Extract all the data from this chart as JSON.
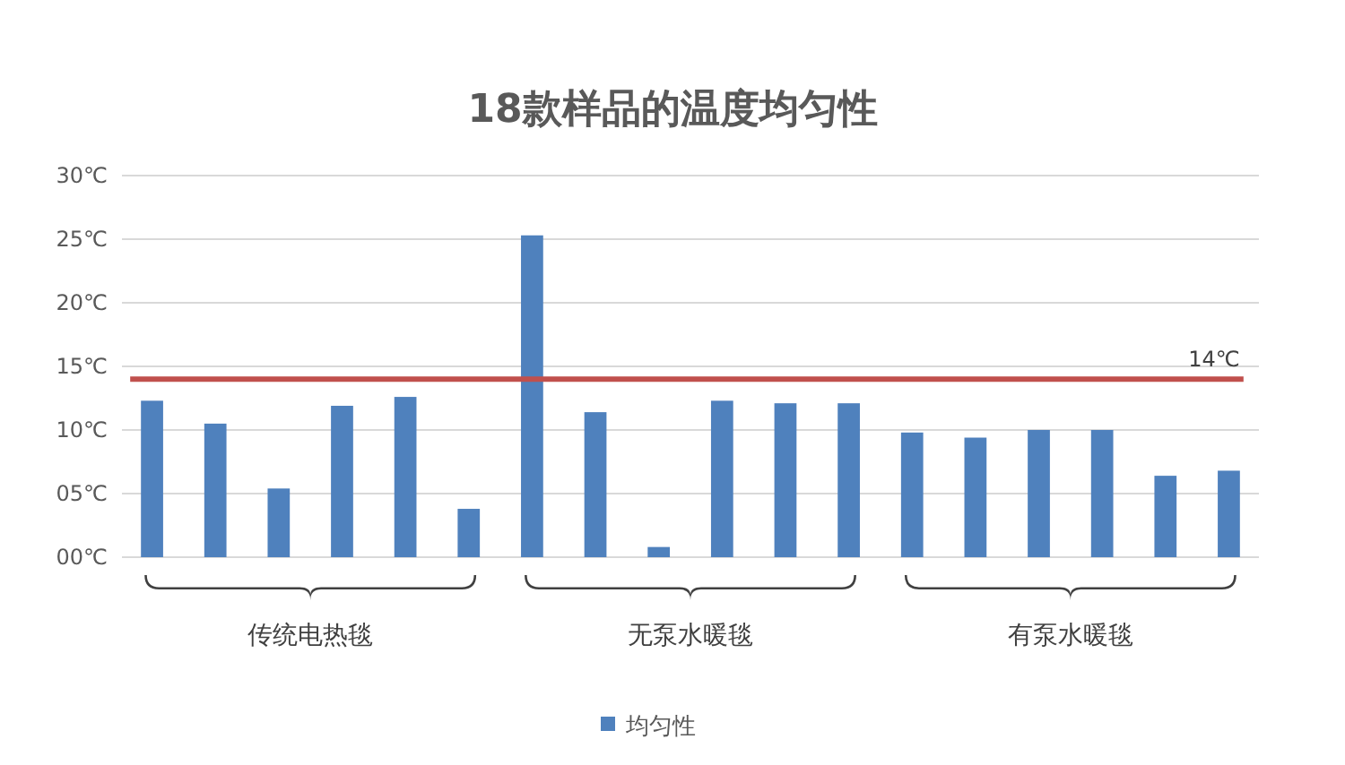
{
  "chart_data": {
    "type": "bar",
    "title": "18款样品的温度均匀性",
    "categories": [
      null,
      null,
      null,
      null,
      null,
      null,
      null,
      null,
      null,
      null,
      null,
      null,
      null,
      null,
      null,
      null,
      null,
      null
    ],
    "series": [
      {
        "name": "均匀性",
        "color": "#4f81bd",
        "values": [
          12.3,
          10.5,
          5.4,
          11.9,
          12.6,
          3.8,
          25.3,
          11.4,
          0.8,
          12.3,
          12.1,
          12.1,
          9.8,
          9.4,
          10.0,
          10.0,
          6.4,
          6.8
        ]
      }
    ],
    "ylim": [
      0,
      30
    ],
    "yticks": [
      {
        "value": 0,
        "label": "00℃"
      },
      {
        "value": 5,
        "label": "05℃"
      },
      {
        "value": 10,
        "label": "10℃"
      },
      {
        "value": 15,
        "label": "15℃"
      },
      {
        "value": 20,
        "label": "20℃"
      },
      {
        "value": 25,
        "label": "25℃"
      },
      {
        "value": 30,
        "label": "30℃"
      }
    ],
    "grid": "y",
    "legend": "bottom",
    "ref_lines": [
      {
        "axis": "y",
        "value": 14,
        "label": "14℃",
        "color": "#c0504d"
      }
    ],
    "annotations": [
      "传统电热毯",
      "无泵水暖毯",
      "有泵水暖毯"
    ]
  }
}
